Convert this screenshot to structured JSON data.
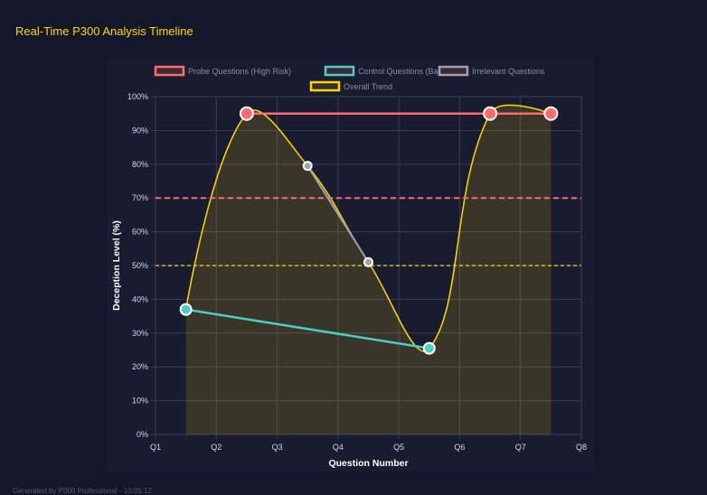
{
  "title": "Real-Time P300 Analysis Timeline",
  "footer": "Generated by P300 Professional - 10:05:12",
  "chart_data": {
    "type": "line",
    "xlabel": "Question Number",
    "ylabel": "Deception Level (%)",
    "x_tick_labels": [
      "Q1",
      "Q2",
      "Q3",
      "Q4",
      "Q5",
      "Q6",
      "Q7",
      "Q8"
    ],
    "y_tick_labels": [
      "0%",
      "10%",
      "20%",
      "30%",
      "40%",
      "50%",
      "60%",
      "70%",
      "80%",
      "90%",
      "100%"
    ],
    "ylim": [
      0,
      100
    ],
    "grid": true,
    "legend": "top",
    "series": [
      {
        "name": "Probe Questions (High Risk)",
        "color": "#ff6b6b",
        "values": [
          null,
          95,
          null,
          null,
          null,
          95,
          95
        ]
      },
      {
        "name": "Control Questions (Baseline)",
        "color": "#4ecdc4",
        "values": [
          37,
          null,
          null,
          null,
          25.5,
          null,
          null
        ]
      },
      {
        "name": "Irrelevant Questions",
        "color": "#a0a0a8",
        "values": [
          null,
          null,
          79.5,
          51,
          null,
          null,
          null
        ]
      },
      {
        "name": "Overall Trend",
        "color": "#ffd700",
        "values": [
          37,
          95,
          79.5,
          51,
          25.5,
          95,
          95
        ],
        "fill": true,
        "smooth": true
      }
    ],
    "threshold_lines": [
      {
        "value": 70,
        "color": "#ff6b6b"
      },
      {
        "value": 50,
        "color": "#ffd700"
      }
    ]
  }
}
